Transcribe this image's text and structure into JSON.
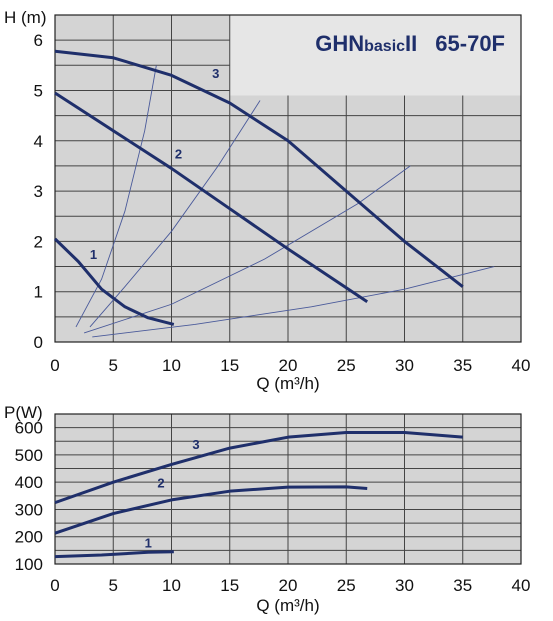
{
  "colors": {
    "curve": "#1f2f6b",
    "plot_bg": "#d4d4d4",
    "title_bg": "#e6e6e6",
    "grid": "#444444",
    "aux": "#4a5a9a"
  },
  "chart_data": [
    {
      "type": "line",
      "title": {
        "main": "GHN",
        "small": "basic",
        "suffix": "II",
        "model": "65-70F"
      },
      "xlabel": "Q (m³/h)",
      "ylabel": "H (m)",
      "xlim": [
        0,
        40
      ],
      "ylim": [
        0,
        6.5
      ],
      "xticks": [
        "0",
        "5",
        "10",
        "15",
        "20",
        "25",
        "30",
        "35",
        "40"
      ],
      "yticks": [
        "0",
        "1",
        "2",
        "3",
        "4",
        "5",
        "6"
      ],
      "grid": true,
      "series": [
        {
          "name": "1",
          "x": [
            0,
            2,
            4,
            6,
            8,
            10.2
          ],
          "y": [
            2.05,
            1.6,
            1.05,
            0.7,
            0.48,
            0.35
          ],
          "label_at": [
            3.3,
            1.65
          ]
        },
        {
          "name": "2",
          "x": [
            0,
            5,
            10,
            15,
            20,
            26.8
          ],
          "y": [
            4.95,
            4.2,
            3.45,
            2.65,
            1.85,
            0.8
          ],
          "label_at": [
            10.6,
            3.65
          ]
        },
        {
          "name": "3",
          "x": [
            0,
            5,
            10,
            15,
            20,
            25,
            30,
            35
          ],
          "y": [
            5.78,
            5.65,
            5.3,
            4.75,
            4.0,
            3.0,
            2.0,
            1.1
          ],
          "label_at": [
            13.8,
            5.25
          ]
        }
      ],
      "system_curves": [
        {
          "x": [
            1.8,
            4,
            6,
            7.7,
            8.7
          ],
          "y": [
            0.3,
            1.25,
            2.6,
            4.2,
            5.5
          ]
        },
        {
          "x": [
            3,
            6,
            10,
            14,
            17.6
          ],
          "y": [
            0.3,
            1.1,
            2.2,
            3.5,
            4.8
          ]
        },
        {
          "x": [
            2.5,
            10,
            18,
            26,
            30.5
          ],
          "y": [
            0.18,
            0.75,
            1.65,
            2.75,
            3.5
          ]
        },
        {
          "x": [
            3.2,
            12,
            22,
            30,
            37.7
          ],
          "y": [
            0.1,
            0.35,
            0.7,
            1.05,
            1.5
          ]
        }
      ]
    },
    {
      "type": "line",
      "xlabel": "Q (m³/h)",
      "ylabel": "P(W)",
      "xlim": [
        0,
        40
      ],
      "ylim": [
        100,
        650
      ],
      "xticks": [
        "0",
        "5",
        "10",
        "15",
        "20",
        "25",
        "30",
        "35",
        "40"
      ],
      "yticks": [
        "100",
        "200",
        "300",
        "400",
        "500",
        "600"
      ],
      "grid": true,
      "series": [
        {
          "name": "1",
          "x": [
            0,
            4,
            8,
            10.2
          ],
          "y": [
            127,
            133,
            143,
            145
          ],
          "label_at": [
            8.0,
            160
          ]
        },
        {
          "name": "2",
          "x": [
            0,
            5,
            10,
            15,
            20,
            25,
            26.8
          ],
          "y": [
            213,
            285,
            335,
            367,
            382,
            383,
            377
          ],
          "label_at": [
            9.1,
            380
          ]
        },
        {
          "name": "3",
          "x": [
            0,
            5,
            10,
            15,
            20,
            25,
            30,
            35
          ],
          "y": [
            325,
            400,
            465,
            525,
            565,
            582,
            582,
            565
          ],
          "label_at": [
            12.1,
            522
          ]
        }
      ]
    }
  ]
}
